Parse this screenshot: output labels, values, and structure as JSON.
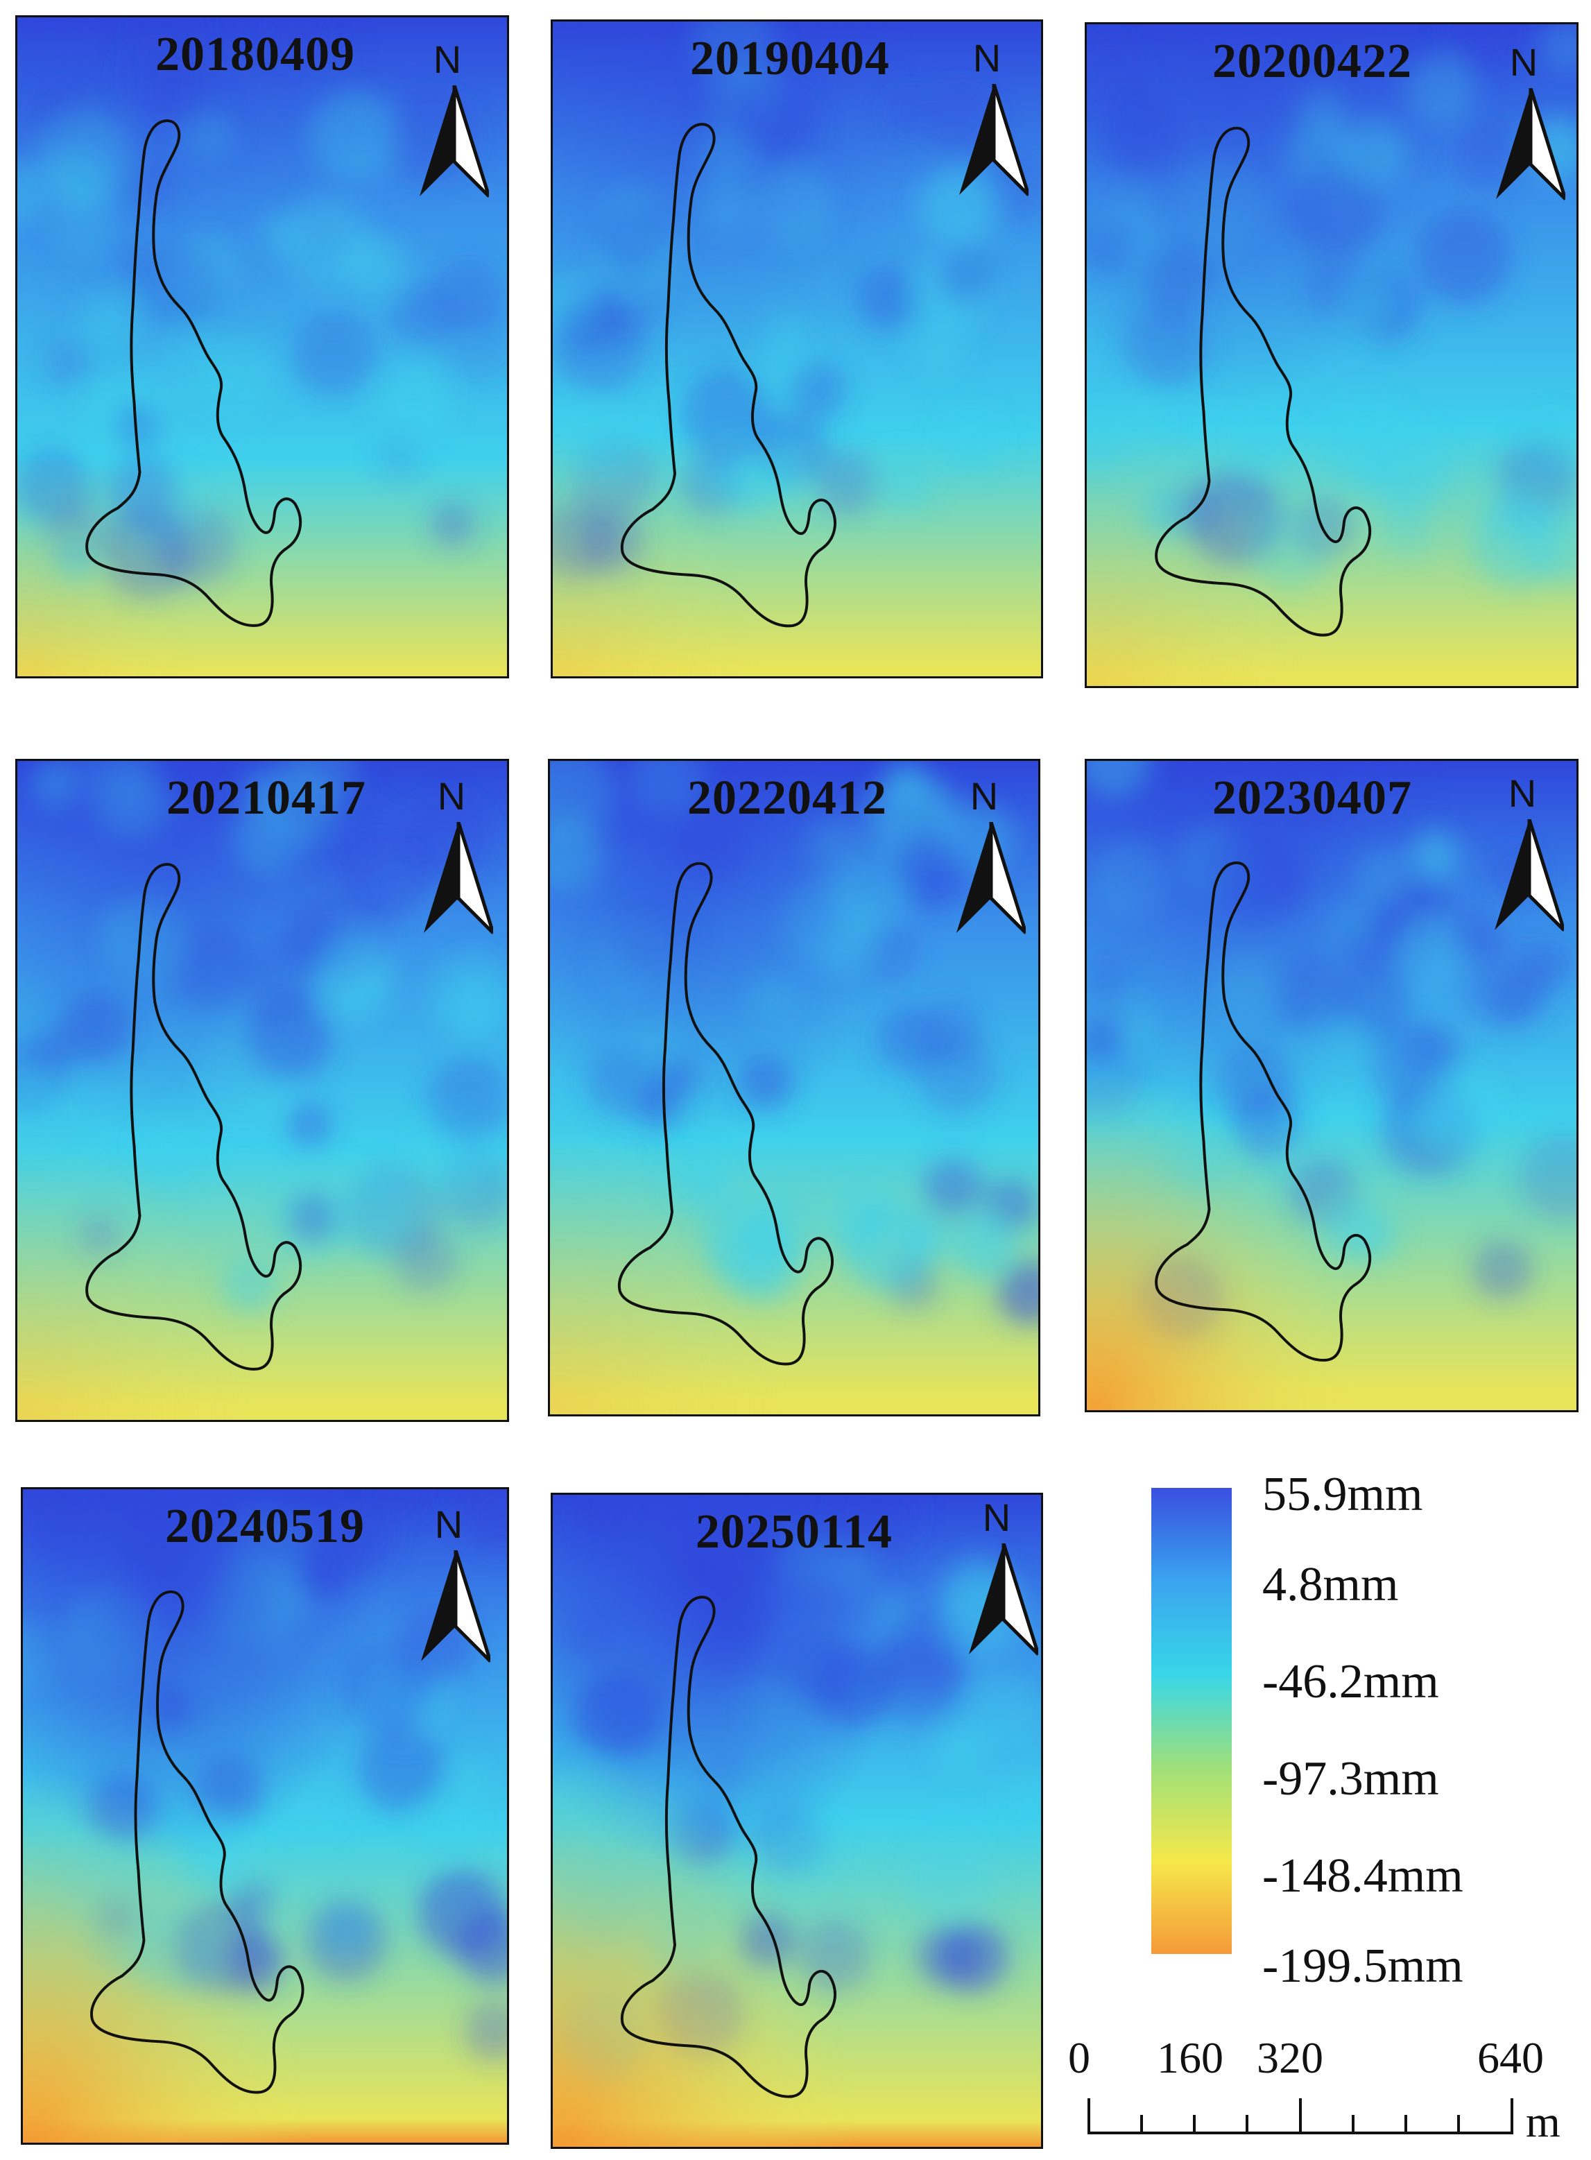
{
  "panels": [
    {
      "date": "20180409",
      "north_label": "N"
    },
    {
      "date": "20190404",
      "north_label": "N"
    },
    {
      "date": "20200422",
      "north_label": "N"
    },
    {
      "date": "20210417",
      "north_label": "N"
    },
    {
      "date": "20220412",
      "north_label": "N"
    },
    {
      "date": "20230407",
      "north_label": "N"
    },
    {
      "date": "20240519",
      "north_label": "N"
    },
    {
      "date": "20250114",
      "north_label": "N"
    }
  ],
  "legend": {
    "labels": [
      "55.9mm",
      "4.8mm",
      "-46.2mm",
      "-97.3mm",
      "-148.4mm",
      "-199.5mm"
    ],
    "colors": [
      "#3a4fe0",
      "#3aa4ef",
      "#38d6e8",
      "#9fe07a",
      "#f5e84a",
      "#f59a3a"
    ]
  },
  "scale_bar": {
    "ticks": [
      "0",
      "160",
      "320",
      "640"
    ],
    "unit": "m"
  },
  "colors": {
    "deep_blue": "#2f47dc",
    "blue": "#3a8eea",
    "cyan": "#3fd0ec",
    "yellow": "#e8e45a",
    "orange": "#f39a34",
    "outline": "#111111"
  }
}
